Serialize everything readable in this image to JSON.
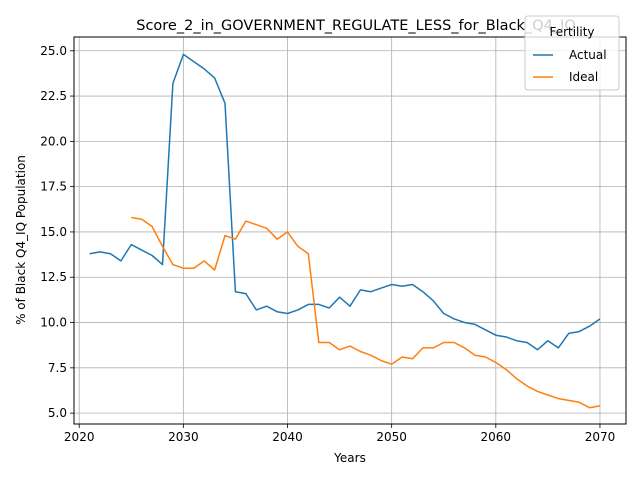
{
  "chart_data": {
    "type": "line",
    "title": "Score_2_in_GOVERNMENT_REGULATE_LESS_for_Black_Q4_IQ",
    "xlabel": "Years",
    "ylabel": "% of Black Q4_IQ Population",
    "xlim": [
      2019.5,
      2072.5
    ],
    "ylim": [
      4.4,
      25.76
    ],
    "xticks": [
      2020,
      2030,
      2040,
      2050,
      2060,
      2070
    ],
    "yticks": [
      5.0,
      7.5,
      10.0,
      12.5,
      15.0,
      17.5,
      20.0,
      22.5,
      25.0
    ],
    "xtick_labels": [
      "2020",
      "2030",
      "2040",
      "2050",
      "2060",
      "2070"
    ],
    "ytick_labels": [
      "5.0",
      "7.5",
      "10.0",
      "12.5",
      "15.0",
      "17.5",
      "20.0",
      "22.5",
      "25.0"
    ],
    "grid": true,
    "legend": {
      "title": "Fertility",
      "placement": "top-right"
    },
    "series": [
      {
        "name": "Actual",
        "color": "#1f77b4",
        "x": [
          2021,
          2022,
          2023,
          2024,
          2025,
          2026,
          2027,
          2028,
          2029,
          2030,
          2031,
          2032,
          2033,
          2034,
          2035,
          2036,
          2037,
          2038,
          2039,
          2040,
          2041,
          2042,
          2043,
          2044,
          2045,
          2046,
          2047,
          2048,
          2049,
          2050,
          2051,
          2052,
          2053,
          2054,
          2055,
          2056,
          2057,
          2058,
          2059,
          2060,
          2061,
          2062,
          2063,
          2064,
          2065,
          2066,
          2067,
          2068,
          2069,
          2070
        ],
        "values": [
          13.8,
          13.9,
          13.8,
          13.4,
          14.3,
          14.0,
          13.7,
          13.2,
          23.2,
          24.8,
          24.4,
          24.0,
          23.5,
          22.1,
          11.7,
          11.6,
          10.7,
          10.9,
          10.6,
          10.5,
          10.7,
          11.0,
          11.0,
          10.8,
          11.4,
          10.9,
          11.8,
          11.7,
          11.9,
          12.1,
          12.0,
          12.1,
          11.7,
          11.2,
          10.5,
          10.2,
          10.0,
          9.9,
          9.6,
          9.3,
          9.2,
          9.0,
          8.9,
          8.5,
          9.0,
          8.6,
          9.4,
          9.5,
          9.8,
          10.2
        ]
      },
      {
        "name": "Ideal",
        "color": "#ff7f0e",
        "x": [
          2025,
          2026,
          2027,
          2028,
          2029,
          2030,
          2031,
          2032,
          2033,
          2034,
          2035,
          2036,
          2037,
          2038,
          2039,
          2040,
          2041,
          2042,
          2043,
          2044,
          2045,
          2046,
          2047,
          2048,
          2049,
          2050,
          2051,
          2052,
          2053,
          2054,
          2055,
          2056,
          2057,
          2058,
          2059,
          2060,
          2061,
          2062,
          2063,
          2064,
          2065,
          2066,
          2067,
          2068,
          2069,
          2070
        ],
        "values": [
          15.8,
          15.7,
          15.3,
          14.2,
          13.2,
          13.0,
          13.0,
          13.4,
          12.9,
          14.8,
          14.6,
          15.6,
          15.4,
          15.2,
          14.6,
          15.0,
          14.2,
          13.8,
          8.9,
          8.9,
          8.5,
          8.7,
          8.4,
          8.2,
          7.9,
          7.7,
          8.1,
          8.0,
          8.6,
          8.6,
          8.9,
          8.9,
          8.6,
          8.2,
          8.1,
          7.8,
          7.4,
          6.9,
          6.5,
          6.2,
          6.0,
          5.8,
          5.7,
          5.6,
          5.3,
          5.4
        ]
      }
    ]
  }
}
